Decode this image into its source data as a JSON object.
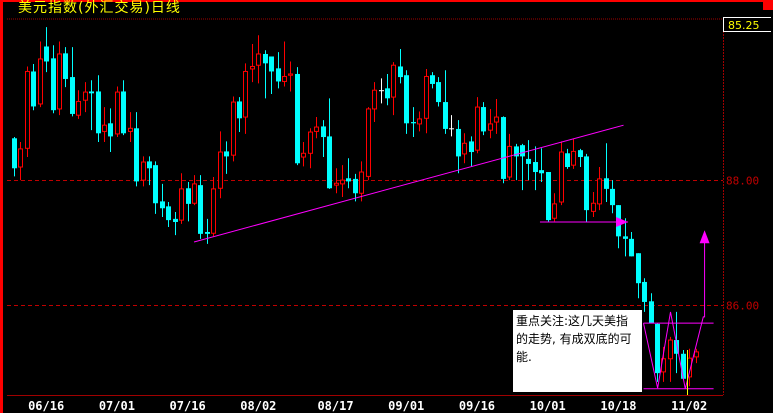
{
  "window": {
    "title": "美元指数(外汇交易)日线"
  },
  "readout": {
    "last_price": "85.25"
  },
  "annotation_note": {
    "text": "重点关注:这几天美指的走势, 有成双底的可能."
  },
  "colors": {
    "up": "#ff0000",
    "down": "#00ffff",
    "doji": "#ffffff",
    "overlay": "#ff00ff",
    "grid": "#c00000",
    "axis_text": "#c00000",
    "title": "#ffff00",
    "cursor": "#ffff00"
  },
  "chart_data": {
    "type": "candlestick",
    "title": "美元指数(外汇交易)日线",
    "ylim": [
      84.56,
      90.58
    ],
    "y_ticks": [
      {
        "value": 88,
        "label": "88.00"
      },
      {
        "value": 86,
        "label": "86.00"
      }
    ],
    "x_labels": [
      {
        "label": "06/16",
        "candle": 6
      },
      {
        "label": "07/01",
        "candle": 17
      },
      {
        "label": "07/16",
        "candle": 28
      },
      {
        "label": "08/02",
        "candle": 39
      },
      {
        "label": "08/17",
        "candle": 51
      },
      {
        "label": "09/01",
        "candle": 62
      },
      {
        "label": "09/16",
        "candle": 73
      },
      {
        "label": "10/01",
        "candle": 84
      },
      {
        "label": "10/18",
        "candle": 95
      },
      {
        "label": "11/02",
        "candle": 106
      }
    ],
    "ohlc": [
      [
        88.67,
        88.69,
        88.06,
        88.19
      ],
      [
        88.21,
        88.61,
        88.0,
        88.5
      ],
      [
        88.51,
        89.82,
        88.37,
        89.74
      ],
      [
        89.74,
        89.86,
        89.12,
        89.18
      ],
      [
        89.22,
        90.22,
        89.17,
        89.94
      ],
      [
        90.14,
        90.45,
        89.73,
        89.9
      ],
      [
        89.95,
        90.16,
        89.07,
        89.12
      ],
      [
        89.14,
        90.22,
        89.04,
        90.02
      ],
      [
        90.03,
        90.13,
        89.49,
        89.62
      ],
      [
        89.65,
        90.13,
        89.02,
        89.06
      ],
      [
        89.04,
        89.44,
        88.98,
        89.26
      ],
      [
        89.28,
        89.57,
        89.09,
        89.41
      ],
      [
        89.42,
        89.6,
        88.8,
        89.39
      ],
      [
        89.42,
        89.68,
        88.61,
        88.75
      ],
      [
        88.78,
        89.17,
        88.61,
        88.88
      ],
      [
        88.91,
        89.15,
        88.45,
        88.7
      ],
      [
        88.74,
        89.5,
        88.69,
        89.41
      ],
      [
        89.42,
        89.6,
        88.72,
        88.75
      ],
      [
        88.78,
        89.09,
        88.61,
        88.83
      ],
      [
        88.83,
        89.09,
        87.9,
        87.98
      ],
      [
        88.0,
        88.38,
        87.9,
        88.29
      ],
      [
        88.3,
        88.38,
        87.92,
        88.19
      ],
      [
        88.24,
        88.3,
        87.46,
        87.63
      ],
      [
        87.66,
        87.94,
        87.41,
        87.55
      ],
      [
        87.58,
        87.65,
        87.25,
        87.36
      ],
      [
        87.38,
        87.49,
        87.12,
        87.33
      ],
      [
        87.36,
        88.11,
        87.3,
        87.86
      ],
      [
        87.87,
        87.97,
        87.34,
        87.62
      ],
      [
        87.63,
        88.08,
        87.6,
        87.94
      ],
      [
        87.92,
        88.08,
        87.06,
        87.14
      ],
      [
        87.17,
        87.38,
        86.98,
        87.14
      ],
      [
        87.15,
        88.05,
        87.1,
        87.86
      ],
      [
        87.87,
        88.78,
        87.71,
        88.45
      ],
      [
        88.46,
        88.62,
        88.1,
        88.38
      ],
      [
        88.4,
        89.34,
        88.3,
        89.25
      ],
      [
        89.26,
        89.33,
        88.77,
        88.99
      ],
      [
        89.01,
        89.87,
        88.74,
        89.74
      ],
      [
        89.78,
        90.18,
        89.57,
        89.82
      ],
      [
        89.84,
        90.32,
        89.55,
        90.02
      ],
      [
        90.02,
        90.08,
        89.31,
        89.87
      ],
      [
        89.98,
        89.98,
        89.38,
        89.74
      ],
      [
        89.79,
        90.05,
        89.47,
        89.58
      ],
      [
        89.58,
        90.22,
        89.5,
        89.66
      ],
      [
        89.68,
        89.9,
        89.42,
        89.7
      ],
      [
        89.7,
        89.81,
        88.24,
        88.27
      ],
      [
        88.37,
        88.61,
        88.22,
        88.43
      ],
      [
        88.43,
        88.83,
        88.19,
        88.77
      ],
      [
        88.78,
        89.01,
        88.67,
        88.85
      ],
      [
        88.86,
        88.96,
        88.37,
        88.69
      ],
      [
        88.7,
        89.31,
        87.86,
        87.87
      ],
      [
        87.92,
        88.19,
        87.79,
        87.95
      ],
      [
        87.94,
        88.24,
        87.73,
        88.0
      ],
      [
        88.03,
        88.35,
        87.87,
        87.98
      ],
      [
        88.02,
        88.1,
        87.66,
        87.79
      ],
      [
        87.79,
        88.3,
        87.66,
        88.13
      ],
      [
        88.06,
        89.17,
        88.0,
        89.14
      ],
      [
        89.14,
        89.57,
        88.93,
        89.44
      ],
      [
        89.44,
        89.63,
        89.23,
        89.44
      ],
      [
        89.47,
        89.7,
        89.2,
        89.31
      ],
      [
        89.33,
        89.89,
        89.04,
        89.84
      ],
      [
        89.82,
        90.1,
        89.55,
        89.65
      ],
      [
        89.68,
        89.76,
        88.74,
        88.91
      ],
      [
        88.93,
        89.17,
        88.69,
        88.91
      ],
      [
        88.9,
        89.1,
        88.78,
        88.98
      ],
      [
        88.99,
        89.78,
        88.75,
        89.66
      ],
      [
        89.68,
        89.73,
        89.47,
        89.54
      ],
      [
        89.57,
        89.65,
        89.18,
        89.25
      ],
      [
        89.25,
        89.76,
        88.74,
        88.82
      ],
      [
        88.83,
        89.04,
        88.7,
        88.83
      ],
      [
        88.82,
        88.96,
        88.11,
        88.38
      ],
      [
        88.42,
        88.75,
        88.27,
        88.59
      ],
      [
        88.62,
        88.7,
        88.22,
        88.45
      ],
      [
        88.48,
        89.33,
        88.43,
        89.17
      ],
      [
        89.17,
        89.25,
        88.72,
        88.78
      ],
      [
        88.8,
        89.14,
        88.67,
        88.9
      ],
      [
        88.93,
        89.3,
        88.74,
        89.01
      ],
      [
        89.01,
        89.02,
        87.95,
        88.02
      ],
      [
        88.05,
        88.74,
        88.0,
        88.54
      ],
      [
        88.54,
        88.58,
        88.0,
        88.38
      ],
      [
        88.56,
        88.58,
        87.84,
        88.38
      ],
      [
        88.34,
        88.64,
        88.0,
        88.26
      ],
      [
        88.29,
        88.54,
        87.84,
        88.13
      ],
      [
        88.16,
        88.51,
        87.97,
        88.11
      ],
      [
        88.13,
        88.13,
        87.33,
        87.36
      ],
      [
        87.39,
        87.79,
        87.34,
        87.62
      ],
      [
        87.65,
        88.62,
        87.6,
        88.45
      ],
      [
        88.43,
        88.5,
        88.18,
        88.21
      ],
      [
        88.24,
        88.66,
        88.18,
        88.46
      ],
      [
        88.48,
        88.5,
        88.21,
        88.37
      ],
      [
        88.38,
        88.42,
        87.33,
        87.52
      ],
      [
        87.5,
        87.81,
        87.41,
        87.63
      ],
      [
        87.62,
        88.21,
        87.52,
        88.02
      ],
      [
        88.03,
        88.59,
        87.65,
        87.86
      ],
      [
        87.86,
        88.0,
        87.47,
        87.6
      ],
      [
        87.6,
        87.6,
        86.91,
        87.1
      ],
      [
        87.1,
        87.39,
        86.78,
        87.06
      ],
      [
        87.06,
        87.17,
        86.78,
        86.78
      ],
      [
        86.83,
        86.83,
        86.11,
        86.35
      ],
      [
        86.37,
        86.43,
        85.89,
        86.05
      ],
      [
        86.06,
        86.19,
        85.71,
        85.71
      ],
      [
        85.7,
        85.71,
        84.77,
        84.91
      ],
      [
        84.93,
        85.33,
        84.77,
        85.14
      ],
      [
        85.14,
        85.49,
        84.77,
        85.44
      ],
      [
        85.44,
        85.89,
        84.91,
        85.22
      ],
      [
        85.22,
        85.28,
        84.8,
        84.82
      ],
      [
        84.85,
        85.3,
        84.7,
        85.15
      ],
      [
        85.17,
        85.3,
        85.07,
        85.25
      ]
    ],
    "ohlc_fields": [
      "open",
      "high",
      "low",
      "close"
    ],
    "overlays": {
      "trend_line": [
        [
          29,
          87.01
        ],
        [
          95.8,
          88.88
        ]
      ],
      "support_arrow": [
        [
          82.8,
          87.33
        ],
        [
          96.5,
          87.33
        ]
      ],
      "double_bottom_path": [
        [
          98.9,
          85.71
        ],
        [
          101.1,
          84.67
        ],
        [
          103.1,
          85.89
        ],
        [
          105.4,
          84.66
        ],
        [
          108.2,
          85.81
        ],
        [
          108.4,
          85.81
        ],
        [
          108.4,
          87.15
        ]
      ],
      "neckline": [
        [
          98.9,
          85.71
        ],
        [
          109.8,
          85.71
        ]
      ],
      "bottom_line": [
        [
          98.9,
          84.66
        ],
        [
          109.8,
          84.66
        ]
      ],
      "cursor_candle": 105.6
    }
  }
}
